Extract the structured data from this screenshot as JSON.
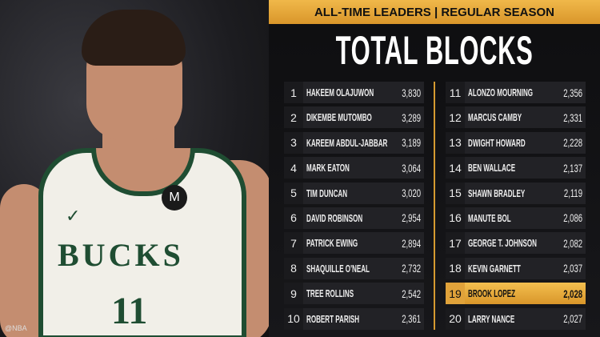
{
  "header": {
    "subtitle": "ALL-TIME LEADERS | REGULAR SEASON",
    "title": "TOTAL BLOCKS"
  },
  "photo": {
    "jersey_text": "BUCKS",
    "jersey_number": "11",
    "credit": "@NBA"
  },
  "colors": {
    "accent": "#e3a73a",
    "background": "#111113",
    "row": "#222226",
    "highlight_text": "#111111"
  },
  "chart_data": {
    "type": "table",
    "columns": [
      "rank",
      "player",
      "blocks"
    ],
    "highlight_rank": 19,
    "rows": [
      {
        "rank": "1",
        "player": "HAKEEM OLAJUWON",
        "blocks": "3,830"
      },
      {
        "rank": "2",
        "player": "DIKEMBE MUTOMBO",
        "blocks": "3,289"
      },
      {
        "rank": "3",
        "player": "KAREEM ABDUL-JABBAR",
        "blocks": "3,189"
      },
      {
        "rank": "4",
        "player": "MARK EATON",
        "blocks": "3,064"
      },
      {
        "rank": "5",
        "player": "TIM DUNCAN",
        "blocks": "3,020"
      },
      {
        "rank": "6",
        "player": "DAVID ROBINSON",
        "blocks": "2,954"
      },
      {
        "rank": "7",
        "player": "PATRICK EWING",
        "blocks": "2,894"
      },
      {
        "rank": "8",
        "player": "SHAQUILLE O'NEAL",
        "blocks": "2,732"
      },
      {
        "rank": "9",
        "player": "TREE ROLLINS",
        "blocks": "2,542"
      },
      {
        "rank": "10",
        "player": "ROBERT PARISH",
        "blocks": "2,361"
      },
      {
        "rank": "11",
        "player": "ALONZO MOURNING",
        "blocks": "2,356"
      },
      {
        "rank": "12",
        "player": "MARCUS CAMBY",
        "blocks": "2,331"
      },
      {
        "rank": "13",
        "player": "DWIGHT HOWARD",
        "blocks": "2,228"
      },
      {
        "rank": "14",
        "player": "BEN WALLACE",
        "blocks": "2,137"
      },
      {
        "rank": "15",
        "player": "SHAWN BRADLEY",
        "blocks": "2,119"
      },
      {
        "rank": "16",
        "player": "MANUTE BOL",
        "blocks": "2,086"
      },
      {
        "rank": "17",
        "player": "GEORGE T. JOHNSON",
        "blocks": "2,082"
      },
      {
        "rank": "18",
        "player": "KEVIN GARNETT",
        "blocks": "2,037"
      },
      {
        "rank": "19",
        "player": "BROOK LOPEZ",
        "blocks": "2,028"
      },
      {
        "rank": "20",
        "player": "LARRY NANCE",
        "blocks": "2,027"
      }
    ]
  }
}
